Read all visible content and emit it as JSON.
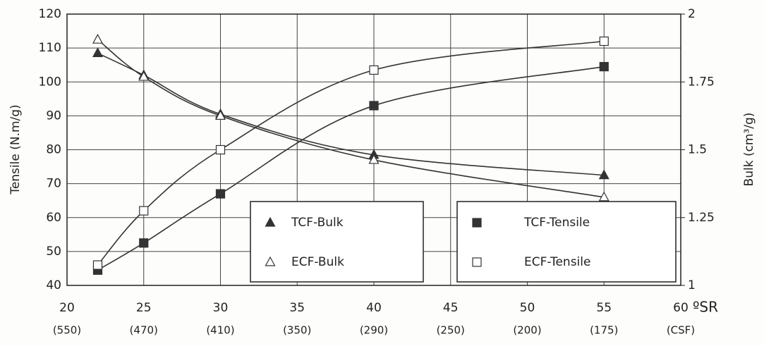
{
  "chart_data": {
    "type": "line",
    "x_axis_label": "ºSR",
    "y_axis_label": "Tensile (N.m/g)",
    "y2_axis_label": "Bulk (cm³/g)",
    "x": [
      22,
      25,
      30,
      40,
      55
    ],
    "series": [
      {
        "name": "TCF-Bulk",
        "color": "#333333",
        "marker": "triangle",
        "filled": true,
        "axis": "y2",
        "values": [
          1.856,
          1.775,
          1.631,
          1.481,
          1.406
        ]
      },
      {
        "name": "ECF-Bulk",
        "color": "#333333",
        "marker": "triangle",
        "filled": false,
        "axis": "y2",
        "values": [
          1.906,
          1.769,
          1.625,
          1.4625,
          1.325
        ]
      },
      {
        "name": "TCF-Tensile",
        "color": "#333333",
        "marker": "square",
        "filled": true,
        "values": [
          44.5,
          52.5,
          67,
          93,
          104.5
        ]
      },
      {
        "name": "ECF-Tensile",
        "color": "#333333",
        "marker": "square",
        "filled": false,
        "values": [
          46,
          62,
          80,
          103.5,
          112
        ]
      }
    ],
    "xlim": [
      20,
      60
    ],
    "xticks": [
      20,
      25,
      30,
      35,
      40,
      45,
      50,
      55,
      60
    ],
    "x2_labels": [
      "(550)",
      "(470)",
      "(410)",
      "(350)",
      "(290)",
      "(250)",
      "(200)",
      "(175)",
      "(CSF)"
    ],
    "ylim": [
      40,
      120
    ],
    "yticks": [
      40,
      50,
      60,
      70,
      80,
      90,
      100,
      110,
      120
    ],
    "y2lim": [
      1,
      2
    ],
    "y2ticks": [
      1,
      1.25,
      1.5,
      1.75,
      2
    ],
    "grid": true
  }
}
